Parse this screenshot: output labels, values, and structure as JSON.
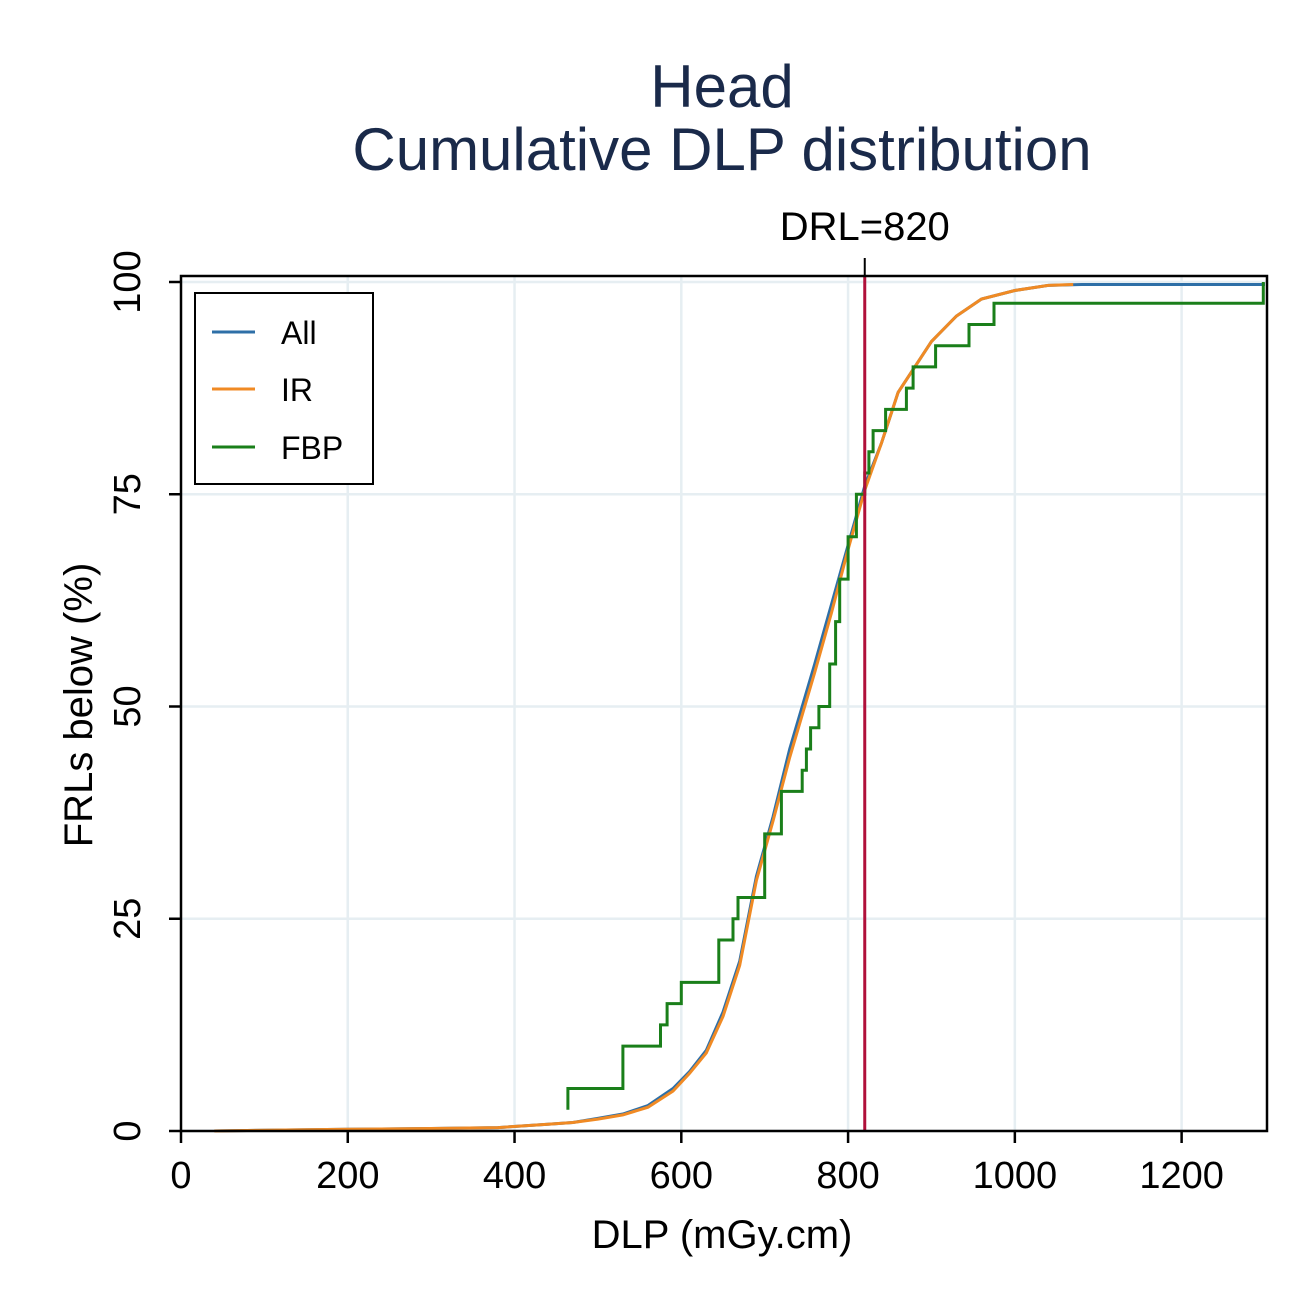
{
  "chart_data": {
    "type": "line",
    "step": true,
    "title": [
      "Head",
      "Cumulative DLP distribution"
    ],
    "xlabel": "DLP (mGy.cm)",
    "ylabel": "FRLs below (%)",
    "xlim": [
      0,
      1300
    ],
    "ylim": [
      0,
      100
    ],
    "xticks": [
      0,
      200,
      400,
      600,
      800,
      1000,
      1200
    ],
    "yticks": [
      0,
      25,
      50,
      75,
      100
    ],
    "grid": true,
    "legend_position": "top-left",
    "reference_line": {
      "axis": "x",
      "value": 820,
      "label": "DRL=820",
      "color": "#b0103a"
    },
    "series": [
      {
        "name": "All",
        "color": "#2e6fa7",
        "points": [
          [
            40,
            0
          ],
          [
            100,
            0.1
          ],
          [
            200,
            0.2
          ],
          [
            300,
            0.3
          ],
          [
            380,
            0.4
          ],
          [
            440,
            0.8
          ],
          [
            470,
            1
          ],
          [
            500,
            1.5
          ],
          [
            530,
            2
          ],
          [
            560,
            3
          ],
          [
            590,
            5
          ],
          [
            610,
            7
          ],
          [
            630,
            9.5
          ],
          [
            650,
            14
          ],
          [
            670,
            20
          ],
          [
            690,
            30
          ],
          [
            710,
            37
          ],
          [
            730,
            45
          ],
          [
            760,
            55
          ],
          [
            780,
            62
          ],
          [
            800,
            69
          ],
          [
            820,
            76
          ],
          [
            840,
            81
          ],
          [
            860,
            87
          ],
          [
            880,
            90
          ],
          [
            900,
            93
          ],
          [
            930,
            96
          ],
          [
            960,
            98
          ],
          [
            1000,
            99
          ],
          [
            1040,
            99.6
          ],
          [
            1080,
            99.7
          ],
          [
            1300,
            99.7
          ]
        ]
      },
      {
        "name": "IR",
        "color": "#f08a24",
        "points": [
          [
            40,
            0
          ],
          [
            100,
            0.1
          ],
          [
            200,
            0.2
          ],
          [
            300,
            0.3
          ],
          [
            380,
            0.4
          ],
          [
            440,
            0.8
          ],
          [
            470,
            1
          ],
          [
            500,
            1.4
          ],
          [
            530,
            1.9
          ],
          [
            560,
            2.8
          ],
          [
            590,
            4.7
          ],
          [
            610,
            6.8
          ],
          [
            630,
            9.2
          ],
          [
            650,
            13.5
          ],
          [
            670,
            19.5
          ],
          [
            690,
            29.5
          ],
          [
            710,
            36.5
          ],
          [
            730,
            44
          ],
          [
            760,
            54
          ],
          [
            780,
            61
          ],
          [
            800,
            68.5
          ],
          [
            820,
            75.5
          ],
          [
            840,
            81
          ],
          [
            860,
            87
          ],
          [
            880,
            90
          ],
          [
            900,
            93
          ],
          [
            930,
            96
          ],
          [
            960,
            98
          ],
          [
            1000,
            99
          ],
          [
            1040,
            99.6
          ],
          [
            1070,
            99.7
          ]
        ]
      },
      {
        "name": "FBP",
        "color": "#1a7f1a",
        "points": [
          [
            464,
            2.5
          ],
          [
            464,
            5
          ],
          [
            530,
            5
          ],
          [
            530,
            10
          ],
          [
            575,
            10
          ],
          [
            575,
            12.5
          ],
          [
            583,
            12.5
          ],
          [
            583,
            15
          ],
          [
            600,
            15
          ],
          [
            600,
            17.5
          ],
          [
            645,
            17.5
          ],
          [
            645,
            22.5
          ],
          [
            662,
            22.5
          ],
          [
            662,
            25
          ],
          [
            668,
            25
          ],
          [
            668,
            27.5
          ],
          [
            700,
            27.5
          ],
          [
            700,
            35
          ],
          [
            720,
            35
          ],
          [
            720,
            40
          ],
          [
            745,
            40
          ],
          [
            745,
            42.5
          ],
          [
            750,
            42.5
          ],
          [
            750,
            45
          ],
          [
            755,
            45
          ],
          [
            755,
            47.5
          ],
          [
            765,
            47.5
          ],
          [
            765,
            50
          ],
          [
            778,
            50
          ],
          [
            778,
            55
          ],
          [
            785,
            55
          ],
          [
            785,
            60
          ],
          [
            790,
            60
          ],
          [
            790,
            65
          ],
          [
            800,
            65
          ],
          [
            800,
            70
          ],
          [
            810,
            70
          ],
          [
            810,
            75
          ],
          [
            820,
            75
          ],
          [
            820,
            77.5
          ],
          [
            825,
            77.5
          ],
          [
            825,
            80
          ],
          [
            830,
            80
          ],
          [
            830,
            82.5
          ],
          [
            845,
            82.5
          ],
          [
            845,
            85
          ],
          [
            870,
            85
          ],
          [
            870,
            87.5
          ],
          [
            878,
            87.5
          ],
          [
            878,
            90
          ],
          [
            905,
            90
          ],
          [
            905,
            92.5
          ],
          [
            945,
            92.5
          ],
          [
            945,
            95
          ],
          [
            975,
            95
          ],
          [
            975,
            97.5
          ],
          [
            1298,
            97.5
          ],
          [
            1298,
            100
          ]
        ]
      }
    ]
  }
}
